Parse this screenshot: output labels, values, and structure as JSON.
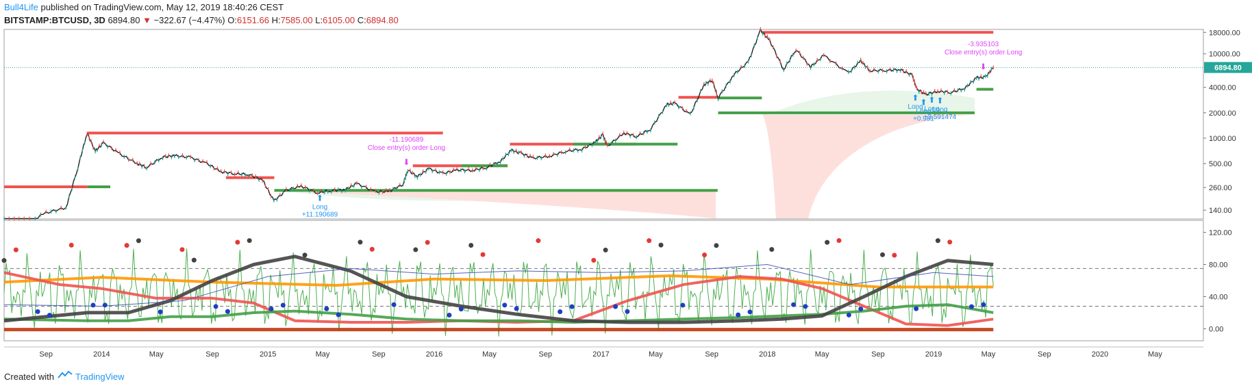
{
  "header": {
    "author": "Bull4Life",
    "published": "published on TradingView.com, May 12, 2019 18:40:26 CEST",
    "symbol": "BITSTAMP:BTCUSD, 3D",
    "last": "6894.80",
    "change": "−322.67 (−4.47%)",
    "o_label": "O:",
    "o_value": "6151.66",
    "h_label": "H:",
    "h_value": "7585.00",
    "l_label": "L:",
    "l_value": "6105.00",
    "c_label": "C:",
    "c_value": "6894.80"
  },
  "footer": {
    "created_with": "Created with",
    "brand": "TradingView"
  },
  "colors": {
    "up": "#26a69a",
    "down": "#ef5350",
    "price_tag": "#26a69a",
    "signal_blue": "#2196f3",
    "close_magenta": "#e040fb",
    "green_line": "#43a047",
    "red_line": "#ef5350",
    "orange_line": "#ff9800",
    "dark_line": "#424242",
    "blue_line": "#3f51b5",
    "brown_line": "#bf360c"
  },
  "chart_data": [
    {
      "type": "line",
      "title": "",
      "log_scale": true,
      "x_ticks": [
        "Sep",
        "2014",
        "May",
        "Sep",
        "2015",
        "May",
        "Sep",
        "2016",
        "May",
        "Sep",
        "2017",
        "May",
        "Sep",
        "2018",
        "May",
        "Sep",
        "2019",
        "May",
        "Sep",
        "2020",
        "May"
      ],
      "y_ticks": [
        "18000.00",
        "10000.00",
        "4000.00",
        "2000.00",
        "1000.00",
        "500.00",
        "260.00",
        "140.00"
      ],
      "ylim": [
        110,
        19500
      ],
      "xlim": [
        "2013-06-01",
        "2020-08-15"
      ],
      "last_price_tag": "6894.80",
      "series": [
        {
          "type": "line",
          "x": [
            "2013-06-01",
            "2013-07-15",
            "2013-09-01",
            "2013-10-15",
            "2013-11-10",
            "2013-11-30",
            "2013-12-18",
            "2014-01-05",
            "2014-02-10",
            "2014-03-20",
            "2014-04-10",
            "2014-05-15",
            "2014-06-10",
            "2014-07-15",
            "2014-08-20",
            "2014-09-20",
            "2014-10-20",
            "2014-11-20",
            "2014-12-20",
            "2015-01-14",
            "2015-02-10",
            "2015-03-15",
            "2015-04-20",
            "2015-05-20",
            "2015-06-20",
            "2015-07-15",
            "2015-08-25",
            "2015-09-25",
            "2015-10-25",
            "2015-11-04",
            "2015-11-25",
            "2015-12-20",
            "2016-01-20",
            "2016-02-20",
            "2016-03-25",
            "2016-04-25",
            "2016-05-25",
            "2016-06-18",
            "2016-07-10",
            "2016-08-05",
            "2016-09-10",
            "2016-10-15",
            "2016-11-20",
            "2016-12-20",
            "2017-01-05",
            "2017-01-15",
            "2017-02-20",
            "2017-03-20",
            "2017-04-20",
            "2017-05-25",
            "2017-06-12",
            "2017-07-16",
            "2017-08-15",
            "2017-09-02",
            "2017-09-15",
            "2017-10-20",
            "2017-11-20",
            "2017-12-17",
            "2018-01-06",
            "2018-02-06",
            "2018-03-05",
            "2018-04-06",
            "2018-05-05",
            "2018-06-28",
            "2018-07-25",
            "2018-08-14",
            "2018-09-20",
            "2018-10-20",
            "2018-11-15",
            "2018-11-25",
            "2018-12-15",
            "2019-01-10",
            "2019-02-08",
            "2019-03-10",
            "2019-04-05",
            "2019-04-25",
            "2019-05-12"
          ],
          "values": [
            110,
            95,
            130,
            150,
            450,
            1150,
            700,
            880,
            650,
            500,
            450,
            600,
            620,
            590,
            500,
            400,
            380,
            370,
            320,
            180,
            240,
            270,
            225,
            240,
            245,
            290,
            230,
            235,
            285,
            420,
            350,
            435,
            380,
            420,
            415,
            450,
            530,
            720,
            660,
            580,
            610,
            700,
            740,
            900,
            1100,
            800,
            1150,
            1050,
            1280,
            2500,
            2600,
            1900,
            4300,
            4900,
            3000,
            5700,
            8000,
            19000,
            14500,
            6500,
            11300,
            7000,
            9600,
            5900,
            8300,
            6300,
            6400,
            6500,
            5600,
            3800,
            3300,
            3600,
            3500,
            3900,
            5200,
            5300,
            6894.8
          ]
        }
      ],
      "levels": [
        {
          "color": "red",
          "price": 265,
          "from": "2013-06-01",
          "to": "2013-12-01"
        },
        {
          "color": "green",
          "price": 265,
          "from": "2013-12-01",
          "to": "2014-01-20"
        },
        {
          "color": "red",
          "price": 1150,
          "from": "2013-11-30",
          "to": "2016-01-20"
        },
        {
          "color": "red",
          "price": 340,
          "from": "2014-10-01",
          "to": "2015-01-15"
        },
        {
          "color": "green",
          "price": 240,
          "from": "2015-01-15",
          "to": "2017-09-14"
        },
        {
          "color": "red",
          "price": 470,
          "from": "2015-11-15",
          "to": "2016-06-10"
        },
        {
          "color": "green",
          "price": 470,
          "from": "2016-03-01",
          "to": "2016-06-10"
        },
        {
          "color": "red",
          "price": 850,
          "from": "2016-06-15",
          "to": "2017-03-20"
        },
        {
          "color": "green",
          "price": 850,
          "from": "2016-11-01",
          "to": "2017-06-18"
        },
        {
          "color": "red",
          "price": 3050,
          "from": "2017-06-20",
          "to": "2017-09-15"
        },
        {
          "color": "green",
          "price": 3000,
          "from": "2017-09-15",
          "to": "2017-12-20"
        },
        {
          "color": "green",
          "price": 2000,
          "from": "2017-09-15",
          "to": "2019-04-01"
        },
        {
          "color": "red",
          "price": 18000,
          "from": "2017-12-20",
          "to": "2019-05-12"
        },
        {
          "color": "green",
          "price": 3800,
          "from": "2019-04-05",
          "to": "2019-05-12"
        }
      ],
      "annotations": [
        {
          "type": "entry",
          "text": "Long",
          "subtext": "+11.190689",
          "x": "2015-04-25",
          "price": 225
        },
        {
          "type": "exit",
          "text": "Close entry(s) order Long",
          "subtext": "-11.190689",
          "x": "2015-11-01",
          "price": 400
        },
        {
          "type": "entry",
          "text": "Long",
          "subtext": "",
          "x": "2018-11-22",
          "price": 3500
        },
        {
          "type": "entry",
          "text": "Long",
          "subtext": "+0.981",
          "x": "2018-12-10",
          "price": 3100
        },
        {
          "type": "entry",
          "text": "Long",
          "subtext": "",
          "x": "2018-12-28",
          "price": 3300
        },
        {
          "type": "entry",
          "text": "Long",
          "subtext": "+3.591474",
          "x": "2019-01-15",
          "price": 3250
        },
        {
          "type": "exit",
          "text": "Close entry(s) order Long",
          "subtext": "-3.935103",
          "x": "2019-04-20",
          "price": 5400
        }
      ]
    },
    {
      "type": "line",
      "title": "",
      "y_ticks": [
        "120.00",
        "80.00",
        "40.00",
        "0.00"
      ],
      "ylim": [
        -15,
        135
      ],
      "dashed_levels": [
        75,
        28
      ],
      "series": [
        {
          "type": "line",
          "name": "",
          "color": "orange_line",
          "x": [
            "2013-06-01",
            "2014-01-01",
            "2014-09-01",
            "2015-06-01",
            "2016-01-01",
            "2016-09-01",
            "2017-06-01",
            "2018-01-01",
            "2018-09-01",
            "2019-05-12"
          ],
          "values": [
            58,
            64,
            58,
            54,
            62,
            60,
            66,
            62,
            52,
            52
          ]
        },
        {
          "type": "line",
          "name": "",
          "color": "red_line",
          "x": [
            "2013-06-01",
            "2013-10-01",
            "2014-01-01",
            "2014-05-01",
            "2014-09-01",
            "2014-12-01",
            "2015-03-01",
            "2015-07-01",
            "2015-11-01",
            "2016-03-01",
            "2016-07-01",
            "2016-11-01",
            "2017-03-01",
            "2017-07-01",
            "2017-11-01",
            "2018-02-01",
            "2018-05-01",
            "2018-08-01",
            "2018-11-01",
            "2019-02-01",
            "2019-05-12"
          ],
          "values": [
            70,
            55,
            50,
            38,
            38,
            32,
            10,
            8,
            8,
            10,
            8,
            10,
            35,
            55,
            65,
            62,
            50,
            28,
            6,
            4,
            12
          ]
        },
        {
          "type": "line",
          "name": "",
          "color": "green_line",
          "x": [
            "2013-06-01",
            "2013-12-01",
            "2014-03-01",
            "2014-06-01",
            "2014-09-01",
            "2014-12-01",
            "2015-03-01",
            "2015-07-01",
            "2015-11-01",
            "2016-03-01",
            "2016-07-01",
            "2016-11-01",
            "2017-03-01",
            "2017-07-01",
            "2017-11-01",
            "2018-02-01",
            "2018-05-01",
            "2018-08-01",
            "2018-11-01",
            "2019-02-01",
            "2019-05-12"
          ],
          "values": [
            12,
            10,
            10,
            15,
            15,
            20,
            22,
            18,
            12,
            10,
            10,
            8,
            10,
            12,
            14,
            16,
            18,
            22,
            28,
            30,
            20
          ]
        },
        {
          "type": "line",
          "name": "",
          "color": "dark_line",
          "x": [
            "2013-06-01",
            "2013-12-01",
            "2014-03-01",
            "2014-06-01",
            "2014-09-01",
            "2014-12-01",
            "2015-03-01",
            "2015-07-01",
            "2015-11-01",
            "2016-03-01",
            "2016-07-01",
            "2016-11-01",
            "2017-03-01",
            "2017-07-01",
            "2017-11-01",
            "2018-02-01",
            "2018-05-01",
            "2018-08-01",
            "2018-11-01",
            "2019-02-01",
            "2019-05-12"
          ],
          "values": [
            10,
            20,
            20,
            35,
            60,
            80,
            90,
            72,
            40,
            28,
            18,
            10,
            8,
            8,
            10,
            12,
            16,
            40,
            65,
            85,
            80
          ]
        },
        {
          "type": "line",
          "name": "",
          "color": "blue_line",
          "x": [
            "2013-06-01",
            "2014-01-01",
            "2014-07-01",
            "2015-01-01",
            "2015-07-01",
            "2016-01-01",
            "2016-07-01",
            "2017-01-01",
            "2017-07-01",
            "2018-01-01",
            "2018-07-01",
            "2019-01-01",
            "2019-05-12"
          ],
          "values": [
            30,
            28,
            35,
            65,
            75,
            68,
            72,
            70,
            72,
            80,
            55,
            70,
            65
          ]
        },
        {
          "type": "line",
          "name": "",
          "color": "brown_line",
          "x": [
            "2013-06-01",
            "2019-05-12"
          ],
          "values": [
            -1,
            -1
          ]
        }
      ]
    }
  ]
}
